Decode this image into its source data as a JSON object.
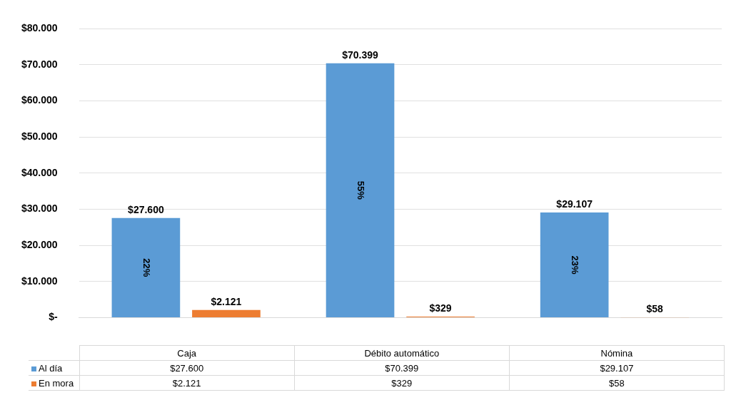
{
  "chart_data": {
    "type": "bar",
    "categories": [
      "Caja",
      "Débito automático",
      "Nómina"
    ],
    "series": [
      {
        "name": "Al día",
        "color": "#5b9bd5",
        "values": [
          27600,
          70399,
          29107
        ],
        "value_labels": [
          "$27.600",
          "$70.399",
          "$29.107"
        ]
      },
      {
        "name": "En mora",
        "color": "#ed7d31",
        "values": [
          2121,
          329,
          58
        ],
        "value_labels": [
          "$2.121",
          "$329",
          "$58"
        ]
      }
    ],
    "ylim": [
      0,
      80000
    ],
    "yticks": [
      {
        "value": 0,
        "label": "$-"
      },
      {
        "value": 10000,
        "label": "$10.000"
      },
      {
        "value": 20000,
        "label": "$20.000"
      },
      {
        "value": 30000,
        "label": "$30.000"
      },
      {
        "value": 40000,
        "label": "$40.000"
      },
      {
        "value": 50000,
        "label": "$50.000"
      },
      {
        "value": 60000,
        "label": "$60.000"
      },
      {
        "value": 70000,
        "label": "$70.000"
      },
      {
        "value": 80000,
        "label": "$80.000"
      }
    ],
    "annotations": [
      "22%",
      "55%",
      "23%"
    ],
    "grid": "y",
    "legend": "bottom"
  }
}
